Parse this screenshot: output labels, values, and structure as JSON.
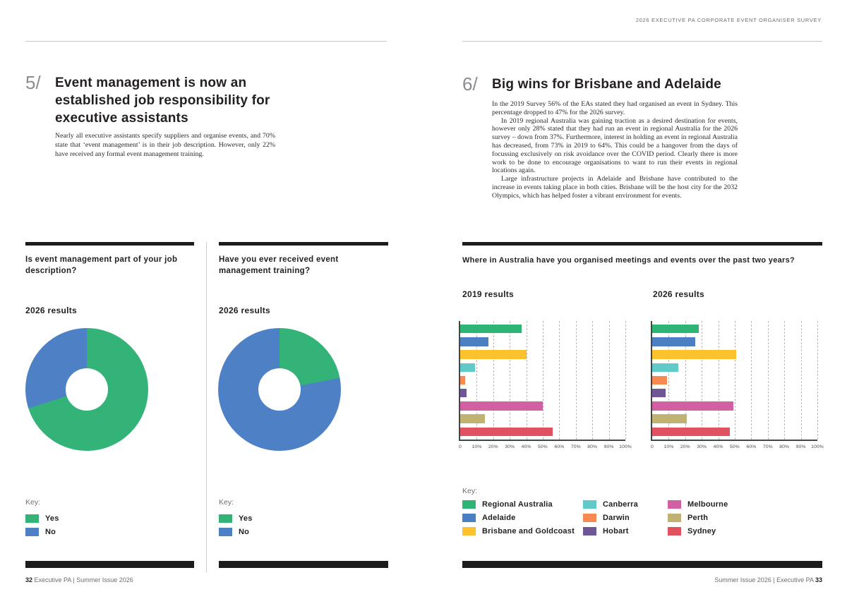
{
  "header": {
    "survey_title": "2026 EXECUTIVE PA CORPORATE EVENT ORGANISER SURVEY"
  },
  "pages": {
    "left": {
      "section_number": "5/",
      "title": "Event management is now an established job responsibility for executive assistants",
      "body": "Nearly all executive assistants specify suppliers and organise events, and 70% state that ‘event management’ is in their job description. However, only 22% have received any formal event management training.",
      "footer": {
        "page_number": "32",
        "text": "Executive PA | Summer Issue 2026"
      }
    },
    "right": {
      "section_number": "6/",
      "title": "Big wins for Brisbane and Adelaide",
      "paragraphs": [
        "In the 2019 Survey 56% of the EAs stated they had organised an event in Sydney. This percentage dropped to 47% for the 2026 survey.",
        "In 2019 regional Australia was gaining traction as a desired destination for events, however only 28% stated that they had run an event in regional Australia for the 2026 survey – down from 37%. Furthermore, interest in holding an event in regional Australia has decreased, from 73% in 2019 to 64%. This could be a hangover from the days of focussing exclusively on risk avoidance over the COVID period. Clearly there is more work to be done to encourage organisations to want to run their events in regional locations again.",
        "Large infrastructure projects in Adelaide and Brisbane have contributed to the increase in events taking place in both cities. Brisbane will be the host city for the 2032 Olympics, which has helped foster a vibrant environment for events."
      ],
      "footer": {
        "text": "Summer Issue 2026 | Executive PA",
        "page_number": "33"
      }
    }
  },
  "chart_data": [
    {
      "id": "job-description-donut",
      "type": "pie",
      "donut": true,
      "title": "Is event management part of your job description?",
      "subtitle": "2026 results",
      "key_label": "Key:",
      "labels": [
        "Yes",
        "No"
      ],
      "values": [
        70,
        30
      ],
      "colors": [
        "#33b377",
        "#4e80c6"
      ]
    },
    {
      "id": "training-donut",
      "type": "pie",
      "donut": true,
      "title": "Have you ever received event management training?",
      "subtitle": "2026 results",
      "key_label": "Key:",
      "labels": [
        "Yes",
        "No"
      ],
      "values": [
        22,
        78
      ],
      "colors": [
        "#33b377",
        "#4e80c6"
      ]
    },
    {
      "id": "locations-bars",
      "type": "bar",
      "orientation": "horizontal",
      "title": "Where in Australia have you organised meetings and events over the past two years?",
      "key_label": "Key:",
      "categories": [
        "Regional Australia",
        "Adelaide",
        "Brisbane and Goldcoast",
        "Canberra",
        "Darwin",
        "Hobart",
        "Melbourne",
        "Perth",
        "Sydney"
      ],
      "colors": [
        "#2eb474",
        "#4a7fc1",
        "#fcc22d",
        "#62c9c9",
        "#f68a50",
        "#6f5795",
        "#d160a3",
        "#c0b175",
        "#e0525f"
      ],
      "series": [
        {
          "name": "2019 results",
          "values": [
            37,
            17,
            40,
            9,
            3,
            4,
            50,
            15,
            56
          ]
        },
        {
          "name": "2026 results",
          "values": [
            28,
            26,
            51,
            16,
            9,
            8,
            49,
            21,
            47
          ]
        }
      ],
      "xlim": [
        0,
        100
      ],
      "x_ticks": [
        "0",
        "10%",
        "20%",
        "30%",
        "40%",
        "50%",
        "60%",
        "70%",
        "80%",
        "90%",
        "100%"
      ],
      "grid": "dashed-vertical",
      "legend_position": "bottom"
    }
  ],
  "colors": {
    "page_background": "#ffffff",
    "rule_gray": "#c7c7c8",
    "section_bar_black": "#1c1c1c",
    "heading_ink": "#231f20",
    "muted_gray": "#6d6e71"
  }
}
